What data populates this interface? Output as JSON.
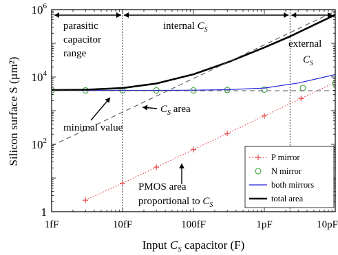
{
  "chart_data": {
    "type": "line",
    "x_scale": "log",
    "y_scale": "log",
    "xlim": [
      1e-15,
      1e-11
    ],
    "ylim": [
      1,
      1000000
    ],
    "grid": false,
    "legend_position": "bottom-right",
    "xlabel": {
      "prefix": "Input ",
      "sym": "C",
      "sub": "S",
      "suffix": " capacitor (F)"
    },
    "ylabel": "Silicon surface S (µm²)",
    "xticks": [
      {
        "value": 1e-15,
        "label": "1fF"
      },
      {
        "value": 1e-14,
        "label": "10fF"
      },
      {
        "value": 1e-13,
        "label": "100fF"
      },
      {
        "value": 1e-12,
        "label": "1pF"
      },
      {
        "value": 1e-11,
        "label": "10pF"
      }
    ],
    "yticks": [
      {
        "value": 1,
        "base": "1",
        "exp": ""
      },
      {
        "value": 100,
        "base": "10",
        "exp": "2"
      },
      {
        "value": 10000,
        "base": "10",
        "exp": "4"
      },
      {
        "value": 1000000,
        "base": "10",
        "exp": "6"
      }
    ],
    "vlines": [
      1e-14,
      2.3e-12
    ],
    "series": [
      {
        "name": "P mirror",
        "color": "#e8474a",
        "style": "dotted",
        "marker": "plus",
        "points": [
          [
            3e-15,
            2.2
          ],
          [
            1e-14,
            7
          ],
          [
            3e-14,
            21
          ],
          [
            1e-13,
            70
          ],
          [
            3e-13,
            210
          ],
          [
            1e-12,
            700
          ],
          [
            3.3e-12,
            2300
          ],
          [
            1e-11,
            7000
          ]
        ]
      },
      {
        "name": "N mirror",
        "color": "#3aa03a",
        "style": "none",
        "marker": "circle",
        "points": [
          [
            1e-15,
            4000
          ],
          [
            3e-15,
            4000
          ],
          [
            1e-14,
            4000
          ],
          [
            3e-14,
            4000
          ],
          [
            1e-13,
            4000
          ],
          [
            3e-13,
            4100
          ],
          [
            1e-12,
            4200
          ],
          [
            3.5e-12,
            4700
          ],
          [
            1e-11,
            6500
          ]
        ]
      },
      {
        "name": "both mirrors",
        "color": "#2222dd",
        "style": "solid",
        "marker": "none",
        "points": [
          [
            1e-15,
            4000
          ],
          [
            3e-15,
            4000
          ],
          [
            1e-14,
            4000
          ],
          [
            3e-14,
            4000
          ],
          [
            1e-13,
            4050
          ],
          [
            3e-13,
            4200
          ],
          [
            1e-12,
            4700
          ],
          [
            3e-12,
            6600
          ],
          [
            1e-11,
            11800
          ]
        ]
      },
      {
        "name": "total area",
        "color": "#000000",
        "style": "solid",
        "marker": "none",
        "points": [
          [
            1e-15,
            4100
          ],
          [
            3e-15,
            4200
          ],
          [
            1e-14,
            4700
          ],
          [
            3e-14,
            6400
          ],
          [
            1e-13,
            12000
          ],
          [
            3e-13,
            27000
          ],
          [
            1e-12,
            75000
          ],
          [
            2.3e-12,
            160000
          ],
          [
            5e-12,
            350000
          ],
          [
            1e-11,
            700000
          ]
        ]
      },
      {
        "name": "",
        "color": "#555555",
        "style": "dashed",
        "marker": "none",
        "points": [
          [
            1e-15,
            90
          ],
          [
            1e-11,
            900000
          ]
        ]
      },
      {
        "name": "",
        "color": "#555555",
        "style": "dashed",
        "marker": "none",
        "points": [
          [
            1e-15,
            3900
          ],
          [
            1e-11,
            3900
          ]
        ]
      }
    ],
    "annotations": [
      {
        "lines": [
          "parasitic",
          "capacitor",
          "range"
        ]
      },
      {
        "prefix": "internal ",
        "sym": "C",
        "sub": "S"
      },
      {
        "lines": [
          "external"
        ],
        "sym": "C",
        "sub": "S"
      },
      {
        "lines": [
          "minimal value"
        ]
      },
      {
        "prefix": "",
        "sym": "C",
        "sub": "S",
        "suffix": " area"
      },
      {
        "lines": [
          "PMOS area",
          "proportional to "
        ],
        "sym": "C",
        "sub": "S"
      }
    ]
  }
}
